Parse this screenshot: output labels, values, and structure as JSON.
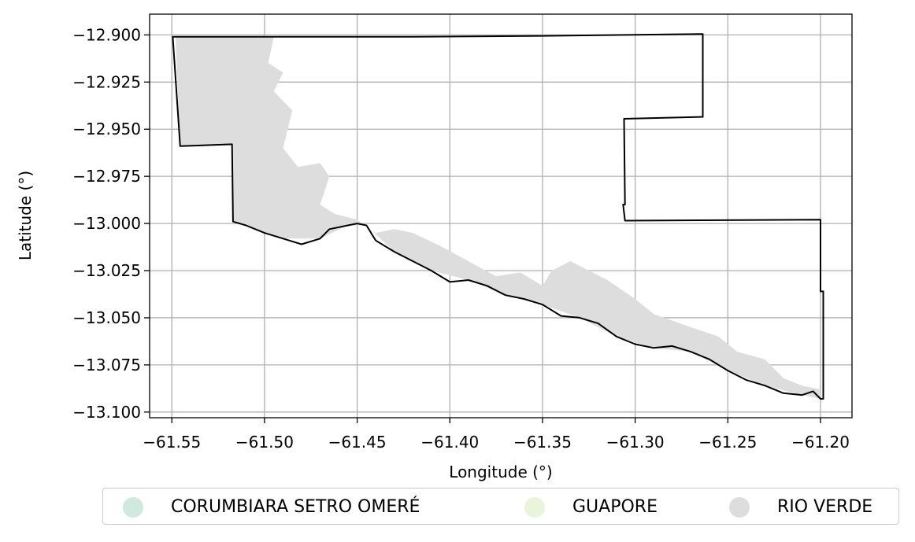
{
  "chart_data": {
    "type": "map",
    "xlabel": "Longitude (°)",
    "ylabel": "Latitude (°)",
    "xlim": [
      -61.562,
      -61.183
    ],
    "ylim": [
      -13.103,
      -12.889
    ],
    "x_ticks": [
      -61.55,
      -61.5,
      -61.45,
      -61.4,
      -61.35,
      -61.3,
      -61.25,
      -61.2
    ],
    "y_ticks": [
      -12.9,
      -12.925,
      -12.95,
      -12.975,
      -13.0,
      -13.025,
      -13.05,
      -13.075,
      -13.1
    ],
    "x_tick_labels": [
      "−61.55",
      "−61.50",
      "−61.45",
      "−61.40",
      "−61.35",
      "−61.30",
      "−61.25",
      "−61.20"
    ],
    "y_tick_labels": [
      "−12.900",
      "−12.925",
      "−12.950",
      "−12.975",
      "−13.000",
      "−13.025",
      "−13.050",
      "−13.075",
      "−13.100"
    ],
    "grid": true,
    "legend_placement": "bottom",
    "boundary": [
      [
        -61.5495,
        -12.901
      ],
      [
        -61.49,
        -12.901
      ],
      [
        -61.42,
        -12.901
      ],
      [
        -61.35,
        -12.9005
      ],
      [
        -61.2635,
        -12.8995
      ],
      [
        -61.2635,
        -12.9435
      ],
      [
        -61.306,
        -12.9445
      ],
      [
        -61.3055,
        -12.99
      ],
      [
        -61.3065,
        -12.99
      ],
      [
        -61.3055,
        -12.9985
      ],
      [
        -61.2,
        -12.998
      ],
      [
        -61.2,
        -13.036
      ],
      [
        -61.1985,
        -13.036
      ],
      [
        -61.1985,
        -13.093
      ],
      [
        -61.2,
        -13.093
      ],
      [
        -61.204,
        -13.089
      ],
      [
        -61.21,
        -13.091
      ],
      [
        -61.22,
        -13.09
      ],
      [
        -61.23,
        -13.086
      ],
      [
        -61.24,
        -13.083
      ],
      [
        -61.25,
        -13.078
      ],
      [
        -61.26,
        -13.072
      ],
      [
        -61.27,
        -13.068
      ],
      [
        -61.28,
        -13.065
      ],
      [
        -61.29,
        -13.066
      ],
      [
        -61.3,
        -13.064
      ],
      [
        -61.31,
        -13.06
      ],
      [
        -61.32,
        -13.053
      ],
      [
        -61.33,
        -13.05
      ],
      [
        -61.34,
        -13.049
      ],
      [
        -61.35,
        -13.043
      ],
      [
        -61.36,
        -13.04
      ],
      [
        -61.37,
        -13.038
      ],
      [
        -61.38,
        -13.033
      ],
      [
        -61.39,
        -13.03
      ],
      [
        -61.4,
        -13.031
      ],
      [
        -61.41,
        -13.025
      ],
      [
        -61.42,
        -13.02
      ],
      [
        -61.43,
        -13.015
      ],
      [
        -61.44,
        -13.009
      ],
      [
        -61.445,
        -13.001
      ],
      [
        -61.45,
        -13.0
      ],
      [
        -61.455,
        -13.001
      ],
      [
        -61.465,
        -13.003
      ],
      [
        -61.47,
        -13.008
      ],
      [
        -61.48,
        -13.011
      ],
      [
        -61.49,
        -13.008
      ],
      [
        -61.5,
        -13.005
      ],
      [
        -61.51,
        -13.001
      ],
      [
        -61.517,
        -12.999
      ],
      [
        -61.5175,
        -12.958
      ],
      [
        -61.5455,
        -12.959
      ],
      [
        -61.5495,
        -12.901
      ]
    ],
    "rio_verde_area": [
      [
        -61.548,
        -12.9012
      ],
      [
        -61.495,
        -12.9012
      ],
      [
        -61.498,
        -12.915
      ],
      [
        -61.49,
        -12.92
      ],
      [
        -61.495,
        -12.93
      ],
      [
        -61.485,
        -12.94
      ],
      [
        -61.49,
        -12.96
      ],
      [
        -61.482,
        -12.97
      ],
      [
        -61.47,
        -12.968
      ],
      [
        -61.465,
        -12.975
      ],
      [
        -61.47,
        -12.99
      ],
      [
        -61.462,
        -12.995
      ],
      [
        -61.45,
        -12.998
      ],
      [
        -61.44,
        -13.005
      ],
      [
        -61.43,
        -13.003
      ],
      [
        -61.42,
        -13.005
      ],
      [
        -61.405,
        -13.012
      ],
      [
        -61.39,
        -13.02
      ],
      [
        -61.375,
        -13.028
      ],
      [
        -61.362,
        -13.026
      ],
      [
        -61.35,
        -13.033
      ],
      [
        -61.345,
        -13.025
      ],
      [
        -61.335,
        -13.02
      ],
      [
        -61.315,
        -13.03
      ],
      [
        -61.3,
        -13.04
      ],
      [
        -61.29,
        -13.048
      ],
      [
        -61.27,
        -13.055
      ],
      [
        -61.255,
        -13.06
      ],
      [
        -61.245,
        -13.068
      ],
      [
        -61.23,
        -13.072
      ],
      [
        -61.22,
        -13.082
      ],
      [
        -61.21,
        -13.086
      ],
      [
        -61.2,
        -13.088
      ],
      [
        -61.2,
        -13.093
      ],
      [
        -61.21,
        -13.091
      ],
      [
        -61.23,
        -13.086
      ],
      [
        -61.25,
        -13.078
      ],
      [
        -61.27,
        -13.068
      ],
      [
        -61.29,
        -13.066
      ],
      [
        -61.31,
        -13.06
      ],
      [
        -61.33,
        -13.05
      ],
      [
        -61.35,
        -13.043
      ],
      [
        -61.37,
        -13.038
      ],
      [
        -61.39,
        -13.03
      ],
      [
        -61.41,
        -13.025
      ],
      [
        -61.43,
        -13.015
      ],
      [
        -61.445,
        -13.001
      ],
      [
        -61.455,
        -13.001
      ],
      [
        -61.47,
        -13.008
      ],
      [
        -61.49,
        -13.008
      ],
      [
        -61.51,
        -13.001
      ],
      [
        -61.517,
        -12.999
      ],
      [
        -61.5175,
        -12.958
      ],
      [
        -61.5455,
        -12.959
      ],
      [
        -61.548,
        -12.9012
      ]
    ],
    "series": [
      {
        "name": "CORUMBIARA SETRO OMERÉ",
        "color": "#cfe9df"
      },
      {
        "name": "GUAPORE",
        "color": "#e9f5db"
      },
      {
        "name": "RIO VERDE",
        "color": "#dddddd"
      }
    ]
  }
}
